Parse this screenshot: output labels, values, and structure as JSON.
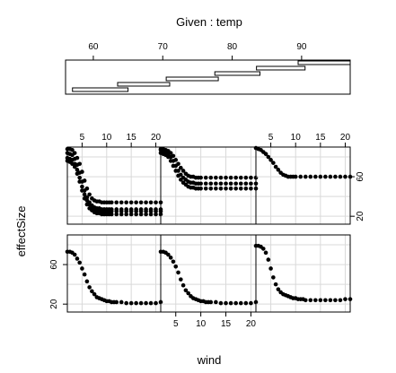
{
  "chart_data": {
    "type": "scatter",
    "plot_kind": "coplot",
    "given": {
      "title": "Given : temp",
      "ticks": [
        60,
        70,
        80,
        90
      ],
      "range": [
        56,
        97
      ],
      "intervals": [
        [
          57,
          65
        ],
        [
          63.5,
          71
        ],
        [
          70.5,
          78
        ],
        [
          77.5,
          84
        ],
        [
          83.5,
          90.5
        ],
        [
          89.5,
          97
        ]
      ]
    },
    "xlabel": "wind",
    "ylabel": "effectSize",
    "x_ticks": [
      5,
      10,
      15,
      20
    ],
    "y_ticks": [
      20,
      60
    ],
    "xlim": [
      2,
      21
    ],
    "ylim": [
      12,
      90
    ],
    "panels": [
      {
        "panel": 1,
        "row": "bottom",
        "col": 1,
        "series": [
          {
            "x": [
              2,
              2.5,
              3,
              3.5,
              4,
              4.5,
              5,
              5.5,
              6,
              6.5,
              7,
              7.5,
              8,
              8.5,
              9,
              9.5,
              10,
              10.5,
              11,
              11.5,
              12,
              13,
              14,
              15,
              16,
              17,
              18,
              19,
              20,
              21
            ],
            "y": [
              73,
              73,
              72,
              70,
              66,
              62,
              56,
              50,
              43,
              37,
              33,
              30,
              27,
              26,
              25,
              24,
              23,
              23,
              22,
              22,
              22,
              22,
              21,
              21,
              21,
              21,
              21,
              21,
              21,
              22
            ]
          }
        ]
      },
      {
        "panel": 2,
        "row": "bottom",
        "col": 2,
        "series": [
          {
            "x": [
              2,
              2.5,
              3,
              3.5,
              4,
              4.5,
              5,
              5.5,
              6,
              6.5,
              7,
              7.5,
              8,
              8.5,
              9,
              9.5,
              10,
              10.5,
              11,
              11.5,
              12,
              13,
              14,
              15,
              16,
              17,
              18,
              19,
              20,
              21
            ],
            "y": [
              73,
              73,
              72,
              70,
              67,
              63,
              58,
              52,
              45,
              39,
              34,
              31,
              28,
              26,
              25,
              24,
              23,
              23,
              22,
              22,
              22,
              22,
              21,
              21,
              21,
              21,
              21,
              21,
              21,
              22
            ]
          }
        ]
      },
      {
        "panel": 3,
        "row": "bottom",
        "col": 3,
        "series": [
          {
            "x": [
              2,
              2.5,
              3,
              3.5,
              4,
              4.5,
              5,
              5.5,
              6,
              6.5,
              7,
              7.5,
              8,
              8.5,
              9,
              9.5,
              10,
              10.5,
              11,
              11.5,
              12,
              13,
              14,
              15,
              16,
              17,
              18,
              19,
              20,
              21
            ],
            "y": [
              79,
              79,
              78,
              76,
              72,
              65,
              56,
              47,
              40,
              35,
              32,
              30,
              29,
              28,
              27,
              26,
              26,
              25,
              25,
              25,
              24,
              24,
              24,
              24,
              24,
              24,
              24,
              24,
              25,
              25
            ]
          }
        ]
      },
      {
        "panel": 4,
        "row": "top",
        "col": 1,
        "series": [
          {
            "x": [
              2,
              2.5,
              3,
              3.5,
              4,
              4.5,
              5,
              5.5,
              6,
              6.5,
              7,
              7.5,
              8,
              8.5,
              9,
              9.5,
              10,
              10.5,
              11,
              12,
              13,
              14,
              15,
              16,
              17,
              18,
              19,
              20,
              21
            ],
            "y": [
              88,
              88,
              87,
              84,
              79,
              73,
              65,
              56,
              48,
              42,
              38,
              36,
              35,
              35,
              34,
              34,
              34,
              34,
              34,
              34,
              34,
              34,
              34,
              34,
              34,
              34,
              34,
              34,
              34
            ]
          },
          {
            "x": [
              2,
              2.5,
              3,
              3.5,
              4,
              4.5,
              5,
              5.5,
              6,
              6.5,
              7,
              7.5,
              8,
              8.5,
              9,
              9.5,
              10,
              10.5,
              11,
              12,
              13,
              14,
              15,
              16,
              17,
              18,
              19,
              20,
              21
            ],
            "y": [
              84,
              83,
              82,
              78,
              72,
              64,
              55,
              46,
              39,
              34,
              31,
              29,
              28,
              28,
              27,
              27,
              27,
              27,
              27,
              27,
              27,
              27,
              27,
              27,
              27,
              27,
              27,
              27,
              27
            ]
          },
          {
            "x": [
              2,
              2.5,
              3,
              3.5,
              4,
              4.5,
              5,
              5.5,
              6,
              6.5,
              7,
              7.5,
              8,
              8.5,
              9,
              9.5,
              10,
              10.5,
              11,
              12,
              13,
              14,
              15,
              16,
              17,
              18,
              19,
              20,
              21
            ],
            "y": [
              79,
              78,
              77,
              73,
              67,
              59,
              50,
              42,
              36,
              32,
              29,
              27,
              26,
              26,
              25,
              25,
              25,
              25,
              25,
              25,
              25,
              25,
              25,
              25,
              25,
              25,
              25,
              25,
              25
            ]
          },
          {
            "x": [
              2,
              2.5,
              3,
              3.5,
              4,
              4.5,
              5,
              5.5,
              6,
              6.5,
              7,
              7.5,
              8,
              8.5,
              9,
              9.5,
              10,
              10.5,
              11,
              12,
              13,
              14,
              15,
              16,
              17,
              18,
              19,
              20,
              21
            ],
            "y": [
              76,
              75,
              73,
              70,
              63,
              55,
              46,
              38,
              32,
              28,
              26,
              24,
              23,
              23,
              22,
              22,
              22,
              22,
              22,
              22,
              22,
              22,
              22,
              22,
              22,
              22,
              22,
              22,
              22
            ]
          }
        ]
      },
      {
        "panel": 5,
        "row": "top",
        "col": 2,
        "series": [
          {
            "x": [
              2,
              2.5,
              3,
              3.5,
              4,
              4.5,
              5,
              5.5,
              6,
              6.5,
              7,
              7.5,
              8,
              8.5,
              9,
              9.5,
              10,
              11,
              12,
              13,
              14,
              15,
              16,
              17,
              18,
              19,
              20,
              21
            ],
            "y": [
              88,
              88,
              87,
              86,
              84,
              81,
              77,
              73,
              69,
              66,
              63,
              61,
              60,
              60,
              59,
              59,
              59,
              59,
              59,
              59,
              59,
              59,
              59,
              59,
              59,
              59,
              59,
              59
            ]
          },
          {
            "x": [
              2,
              2.5,
              3,
              3.5,
              4,
              4.5,
              5,
              5.5,
              6,
              6.5,
              7,
              7.5,
              8,
              8.5,
              9,
              9.5,
              10,
              11,
              12,
              13,
              14,
              15,
              16,
              17,
              18,
              19,
              20,
              21
            ],
            "y": [
              87,
              86,
              85,
              83,
              80,
              76,
              71,
              66,
              62,
              59,
              57,
              55,
              54,
              54,
              53,
              53,
              53,
              53,
              53,
              53,
              53,
              53,
              53,
              53,
              53,
              53,
              53,
              53
            ]
          },
          {
            "x": [
              2,
              2.5,
              3,
              3.5,
              4,
              4.5,
              5,
              5.5,
              6,
              6.5,
              7,
              7.5,
              8,
              8.5,
              9,
              9.5,
              10,
              11,
              12,
              13,
              14,
              15,
              16,
              17,
              18,
              19,
              20,
              21
            ],
            "y": [
              84,
              83,
              82,
              80,
              76,
              71,
              66,
              61,
              57,
              54,
              52,
              50,
              49,
              49,
              48,
              48,
              48,
              48,
              48,
              48,
              48,
              48,
              48,
              48,
              48,
              48,
              48,
              48
            ]
          }
        ]
      },
      {
        "panel": 6,
        "row": "top",
        "col": 3,
        "series": [
          {
            "x": [
              2,
              2.5,
              3,
              3.5,
              4,
              4.5,
              5,
              5.5,
              6,
              6.5,
              7,
              7.5,
              8,
              8.5,
              9,
              9.5,
              10,
              11,
              12,
              13,
              14,
              15,
              16,
              17,
              18,
              19,
              20,
              21
            ],
            "y": [
              89,
              88,
              87,
              85,
              83,
              80,
              77,
              74,
              70,
              67,
              64,
              62,
              61,
              60,
              60,
              60,
              60,
              60,
              60,
              60,
              60,
              60,
              60,
              60,
              60,
              60,
              60,
              60
            ]
          }
        ]
      }
    ]
  }
}
